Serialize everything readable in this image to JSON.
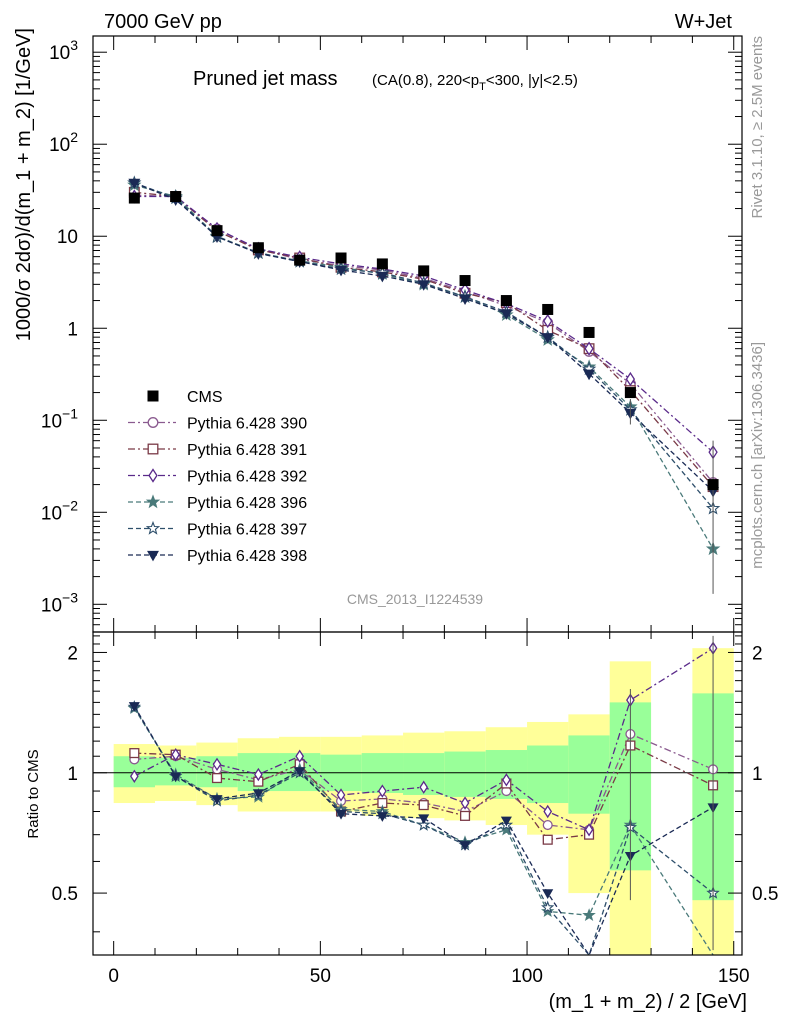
{
  "header": {
    "left": "7000 GeV pp",
    "right": "W+Jet"
  },
  "plot_title": "Pruned jet mass",
  "plot_subtitle_parts": [
    "(CA(0.8), 220<p",
    "T",
    "<300, |y|<2.5)"
  ],
  "analysis_id": "CMS_2013_I1224539",
  "side_text_top": "Rivet 3.1.10, ≥ 2.5M events",
  "side_text_bottom": "mcplots.cern.ch [arXiv:1306.3436]",
  "chart_data": {
    "type": "scatter",
    "ylabel": "1000/σ 2dσ)/d(m_1 + m_2) [1/GeV]",
    "xlabel": "(m_1 + m_2) / 2 [GeV]",
    "ratio_ylabel": "Ratio to CMS",
    "xlim": [
      -5,
      152
    ],
    "ylim": [
      0.0005,
      1500
    ],
    "yscale": "log",
    "ratio_ylim": [
      0.35,
      2.25
    ],
    "x_ticks": [
      "0",
      "50",
      "100",
      "150"
    ],
    "y_ticks": [
      {
        "base": "10",
        "exp": "3",
        "value": 1000
      },
      {
        "base": "10",
        "exp": "2",
        "value": 100
      },
      {
        "base": "10",
        "exp": "",
        "value": 10
      },
      {
        "base": "1",
        "exp": "",
        "value": 1
      },
      {
        "base": "10",
        "exp": "−1",
        "value": 0.1
      },
      {
        "base": "10",
        "exp": "−2",
        "value": 0.01
      },
      {
        "base": "10",
        "exp": "−3",
        "value": 0.001
      }
    ],
    "ratio_ticks": [
      "0.5",
      "1",
      "2"
    ],
    "ratio_tick_values": [
      0.5,
      1,
      2
    ],
    "x": [
      5,
      15,
      25,
      35,
      45,
      55,
      65,
      75,
      85,
      95,
      105,
      115,
      125,
      145
    ],
    "data": {
      "name": "CMS",
      "values": [
        26,
        27,
        11.5,
        7.5,
        5.5,
        5.8,
        5.0,
        4.2,
        3.3,
        2.0,
        1.6,
        0.9,
        0.2,
        0.02
      ]
    },
    "ratio_bands": {
      "edges": [
        0,
        10,
        20,
        30,
        40,
        50,
        60,
        70,
        80,
        90,
        100,
        110,
        120,
        130,
        140,
        150
      ],
      "inner": [
        [
          0.92,
          1.1
        ],
        [
          0.93,
          1.09
        ],
        [
          0.92,
          1.1
        ],
        [
          0.9,
          1.12
        ],
        [
          0.9,
          1.12
        ],
        [
          0.9,
          1.11
        ],
        [
          0.89,
          1.12
        ],
        [
          0.88,
          1.12
        ],
        [
          0.87,
          1.13
        ],
        [
          0.86,
          1.14
        ],
        [
          0.84,
          1.17
        ],
        [
          0.79,
          1.24
        ],
        [
          0.57,
          1.5
        ],
        null,
        [
          0.48,
          1.58
        ]
      ],
      "outer": [
        [
          0.84,
          1.18
        ],
        [
          0.85,
          1.17
        ],
        [
          0.83,
          1.19
        ],
        [
          0.8,
          1.22
        ],
        [
          0.8,
          1.23
        ],
        [
          0.8,
          1.23
        ],
        [
          0.78,
          1.24
        ],
        [
          0.77,
          1.26
        ],
        [
          0.76,
          1.27
        ],
        [
          0.74,
          1.3
        ],
        [
          0.7,
          1.34
        ],
        [
          0.5,
          1.4
        ],
        [
          0.35,
          1.9
        ],
        null,
        [
          0.35,
          2.05
        ]
      ],
      "inner_color": "#99ff99",
      "outer_color": "#ffff99"
    },
    "series": [
      {
        "name": "Pythia 6.428 390",
        "color": "#8a5a8f",
        "marker": "circle-open",
        "dash": "7,3,2,3",
        "values": [
          28,
          27,
          12,
          7.2,
          5.6,
          4.8,
          4.3,
          3.5,
          2.5,
          1.75,
          1.15,
          0.56,
          0.25,
          0.021
        ],
        "ratio": [
          1.08,
          1.1,
          1.02,
          0.96,
          1.02,
          0.85,
          0.86,
          0.84,
          0.8,
          0.9,
          0.74,
          0.72,
          1.25,
          1.02
        ]
      },
      {
        "name": "Pythia 6.428 391",
        "color": "#7a3a46",
        "marker": "square-open",
        "dash": "7,3,2,3",
        "values": [
          30,
          27,
          11.4,
          7.1,
          5.8,
          4.6,
          4.1,
          3.4,
          2.4,
          1.9,
          0.95,
          0.6,
          0.21,
          0.019
        ],
        "ratio": [
          1.12,
          1.11,
          0.97,
          0.95,
          1.05,
          0.8,
          0.84,
          0.83,
          0.78,
          0.94,
          0.68,
          0.7,
          1.17,
          0.93
        ]
      },
      {
        "name": "Pythia 6.428 392",
        "color": "#5a2a8a",
        "marker": "diamond-open",
        "dash": "7,3,2,3",
        "values": [
          27,
          27,
          12,
          7.3,
          5.9,
          5.0,
          4.4,
          3.7,
          2.6,
          1.85,
          1.2,
          0.6,
          0.28,
          0.045
        ],
        "ratio": [
          0.98,
          1.11,
          1.05,
          0.99,
          1.1,
          0.88,
          0.9,
          0.92,
          0.84,
          0.96,
          0.8,
          0.72,
          1.52,
          2.05
        ]
      },
      {
        "name": "Pythia 6.428 396",
        "color": "#4a7a7a",
        "marker": "star-filled",
        "dash": "5,3",
        "values": [
          36,
          27,
          10,
          6.6,
          5.4,
          4.6,
          3.9,
          3.0,
          2.2,
          1.4,
          0.75,
          0.38,
          0.14,
          0.004
        ],
        "ratio": [
          1.45,
          0.99,
          0.86,
          0.87,
          1.02,
          0.81,
          0.8,
          0.74,
          0.67,
          0.72,
          0.45,
          0.44,
          0.74,
          0.2
        ]
      },
      {
        "name": "Pythia 6.428 397",
        "color": "#2e4f6b",
        "marker": "star-open",
        "dash": "5,3",
        "values": [
          38,
          26,
          9.8,
          6.6,
          5.3,
          4.4,
          4.0,
          3.1,
          2.2,
          1.5,
          0.8,
          0.36,
          0.13,
          0.011
        ],
        "ratio": [
          1.46,
          0.98,
          0.85,
          0.88,
          1.0,
          0.8,
          0.79,
          0.74,
          0.66,
          0.74,
          0.46,
          0.34,
          0.73,
          0.5
        ]
      },
      {
        "name": "Pythia 6.428 398",
        "color": "#1a2a55",
        "marker": "triangle-down-filled",
        "dash": "5,3",
        "values": [
          38,
          25,
          9.9,
          6.5,
          5.3,
          4.3,
          3.7,
          3.0,
          2.1,
          1.45,
          0.8,
          0.32,
          0.12,
          0.017
        ],
        "ratio": [
          1.47,
          0.98,
          0.86,
          0.89,
          1.01,
          0.79,
          0.78,
          0.77,
          0.66,
          0.76,
          0.5,
          0.3,
          0.62,
          0.82
        ]
      }
    ]
  }
}
